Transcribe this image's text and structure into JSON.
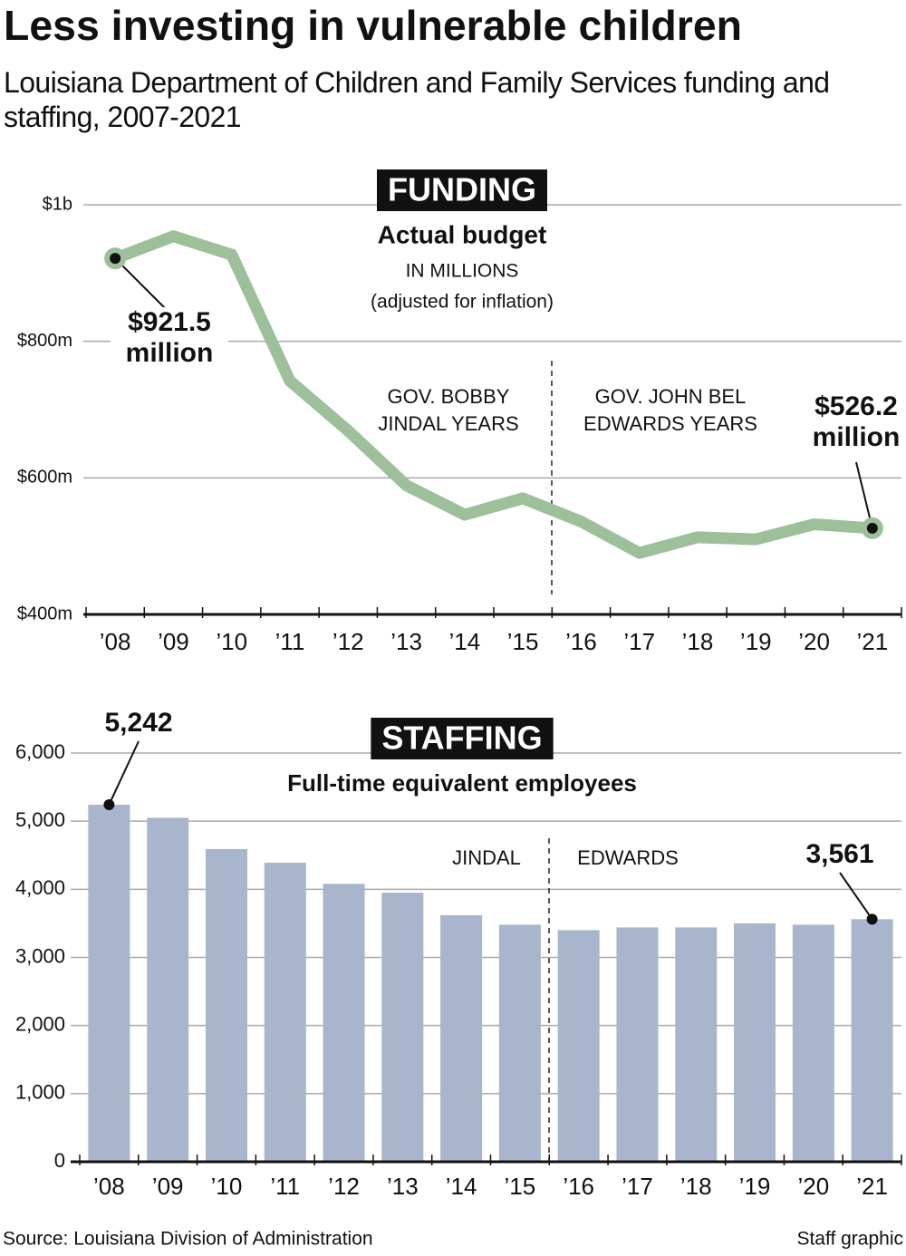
{
  "header": {
    "title": "Less investing in vulnerable children",
    "subtitle": "Louisiana Department of Children and Family Services funding and staffing, 2007-2021"
  },
  "chart_data": [
    {
      "type": "line",
      "title": "FUNDING",
      "subtitle": "Actual budget",
      "units": "IN MILLIONS",
      "note": "(adjusted for inflation)",
      "categories": [
        "’08",
        "’09",
        "’10",
        "’11",
        "’12",
        "’13",
        "’14",
        "’15",
        "’16",
        "’17",
        "’18",
        "’19",
        "’20",
        "’21"
      ],
      "values": [
        921.5,
        954,
        927,
        742,
        669,
        589,
        546,
        570,
        536,
        490,
        513,
        510,
        532,
        526.2
      ],
      "value_labels": [
        "$921.5 million",
        null,
        null,
        null,
        null,
        null,
        null,
        null,
        null,
        null,
        null,
        null,
        null,
        "$526.2 million"
      ],
      "color": "#9dbf9a",
      "ylim": [
        400,
        1000
      ],
      "yticks": [
        {
          "value": 400,
          "label": "$400m"
        },
        {
          "value": 600,
          "label": "$600m"
        },
        {
          "value": 800,
          "label": "$800m"
        },
        {
          "value": 1000,
          "label": "$1b"
        }
      ],
      "grid": true,
      "periods": [
        "GOV. BOBBY JINDAL YEARS",
        "GOV. JOHN BEL EDWARDS YEARS"
      ]
    },
    {
      "type": "bar",
      "title": "STAFFING",
      "subtitle": "Full-time equivalent employees",
      "categories": [
        "’08",
        "’09",
        "’10",
        "’11",
        "’12",
        "’13",
        "’14",
        "’15",
        "’16",
        "’17",
        "’18",
        "’19",
        "’20",
        "’21"
      ],
      "values": [
        5242,
        5050,
        4590,
        4390,
        4080,
        3950,
        3620,
        3480,
        3400,
        3440,
        3440,
        3500,
        3480,
        3561
      ],
      "value_labels": [
        "5,242",
        null,
        null,
        null,
        null,
        null,
        null,
        null,
        null,
        null,
        null,
        null,
        null,
        "3,561"
      ],
      "color": "#a8b5cd",
      "ylim": [
        0,
        6000
      ],
      "yticks": [
        0,
        {
          "value": 1000,
          "label": "1,000"
        },
        {
          "value": 2000,
          "label": "2,000"
        },
        {
          "value": 3000,
          "label": "3,000"
        },
        {
          "value": 4000,
          "label": "4,000"
        },
        {
          "value": 5000,
          "label": "5,000"
        },
        {
          "value": 6000,
          "label": "6,000"
        }
      ],
      "grid": true,
      "periods": [
        "JINDAL",
        "EDWARDS"
      ]
    }
  ],
  "footer": {
    "source": "Source: Louisiana Division of Administration",
    "credit": "Staff graphic"
  }
}
